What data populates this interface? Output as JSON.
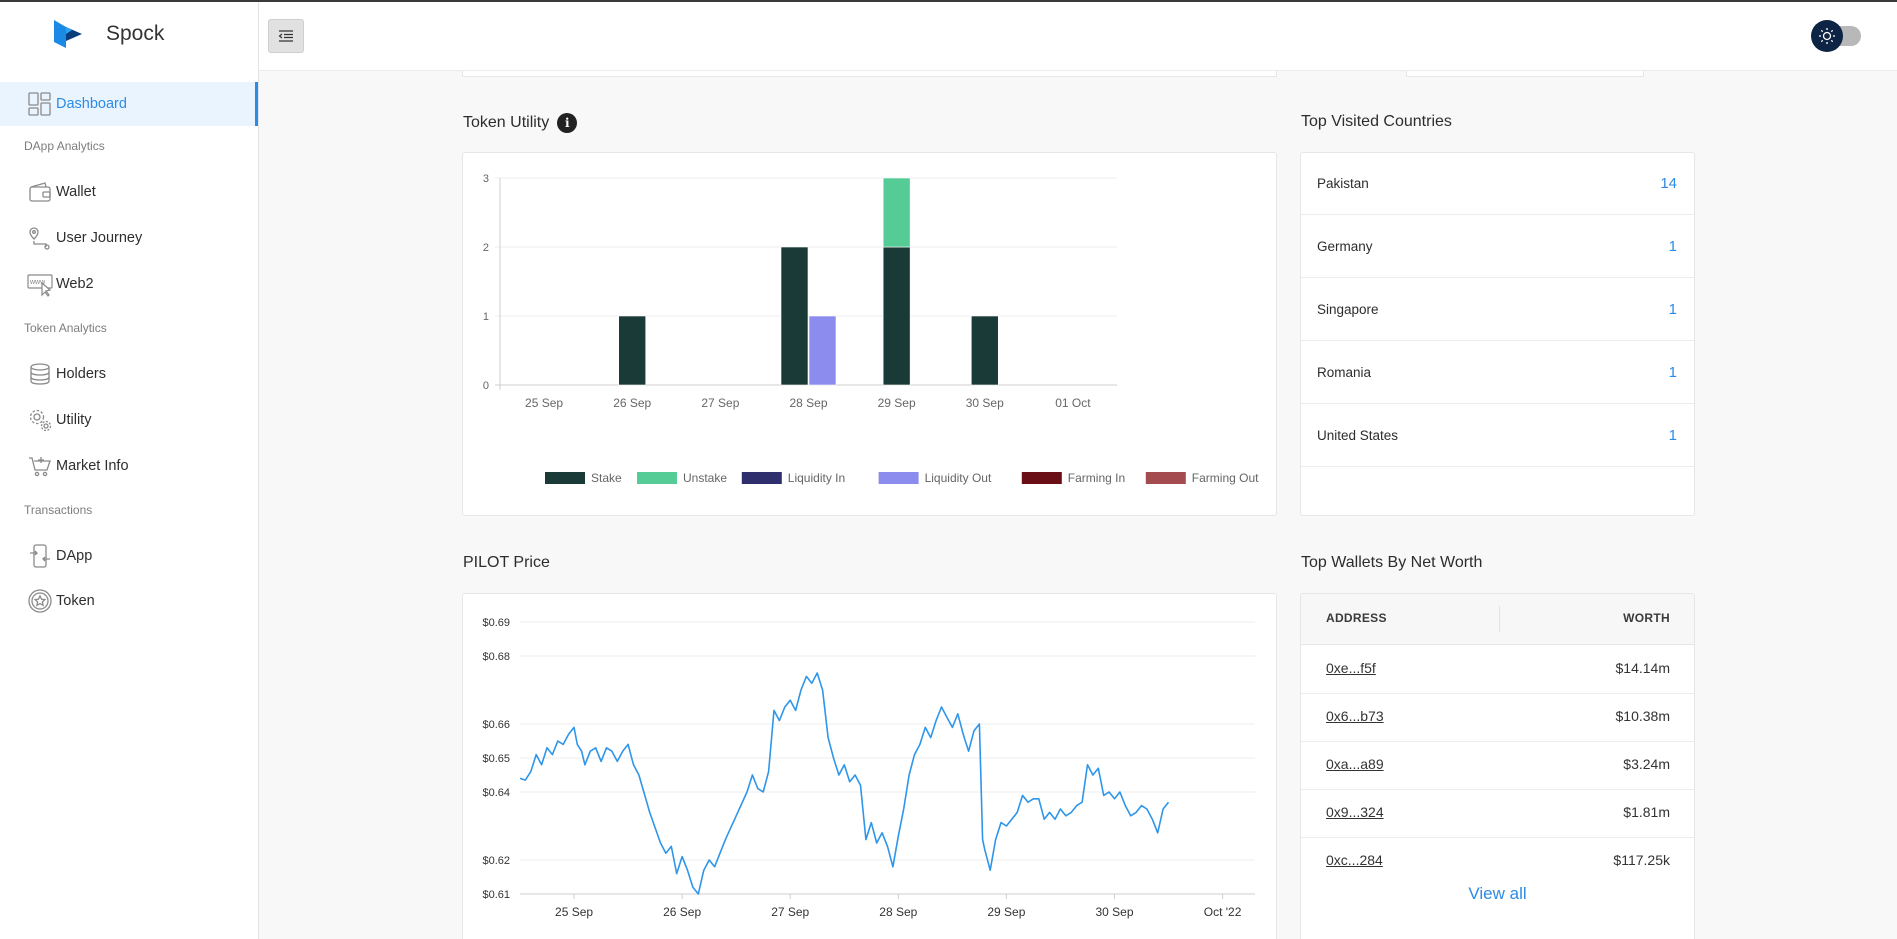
{
  "brand": {
    "name": "Spock"
  },
  "header": {
    "menu_icon": "indent-menu-icon",
    "theme_icon": "sun-icon"
  },
  "sidebar": {
    "dashboard": {
      "label": "Dashboard",
      "icon": "dashboard-icon"
    },
    "sections": [
      {
        "title": "DApp Analytics",
        "items": [
          {
            "label": "Wallet",
            "icon": "wallet-icon"
          },
          {
            "label": "User Journey",
            "icon": "route-pin-icon"
          },
          {
            "label": "Web2",
            "icon": "www-cursor-icon"
          }
        ]
      },
      {
        "title": "Token Analytics",
        "items": [
          {
            "label": "Holders",
            "icon": "coin-stack-icon"
          },
          {
            "label": "Utility",
            "icon": "gears-icon"
          },
          {
            "label": "Market Info",
            "icon": "cart-icon"
          }
        ]
      },
      {
        "title": "Transactions",
        "items": [
          {
            "label": "DApp",
            "icon": "phone-exchange-icon"
          },
          {
            "label": "Token",
            "icon": "token-star-icon"
          }
        ]
      }
    ]
  },
  "token_utility": {
    "title": "Token Utility",
    "info": "i"
  },
  "countries": {
    "title": "Top Visited Countries",
    "rows": [
      {
        "name": "Pakistan",
        "count": "14"
      },
      {
        "name": "Germany",
        "count": "1"
      },
      {
        "name": "Singapore",
        "count": "1"
      },
      {
        "name": "Romania",
        "count": "1"
      },
      {
        "name": "United States",
        "count": "1"
      }
    ]
  },
  "pilot_price": {
    "title": "PILOT Price"
  },
  "wallets": {
    "title": "Top Wallets By Net Worth",
    "col_address": "ADDRESS",
    "col_worth": "WORTH",
    "rows": [
      {
        "address": "0xe...f5f",
        "worth": "$14.14m"
      },
      {
        "address": "0x6...b73",
        "worth": "$10.38m"
      },
      {
        "address": "0xa...a89",
        "worth": "$3.24m"
      },
      {
        "address": "0x9...324",
        "worth": "$1.81m"
      },
      {
        "address": "0xc...284",
        "worth": "$117.25k"
      }
    ],
    "view_all": "View all"
  },
  "chart_data": [
    {
      "type": "bar",
      "stacked": true,
      "categories": [
        "25 Sep",
        "26 Sep",
        "27 Sep",
        "28 Sep",
        "29 Sep",
        "30 Sep",
        "01 Oct"
      ],
      "ylim": [
        0,
        3
      ],
      "yticks": [
        "0",
        "1",
        "2",
        "3"
      ],
      "grid": true,
      "legend_position": "bottom",
      "series": [
        {
          "name": "Stake",
          "color": "#1a3a38",
          "values": [
            0,
            1,
            0,
            2,
            2,
            1,
            0
          ],
          "stack": "a"
        },
        {
          "name": "Unstake",
          "color": "#55cc95",
          "values": [
            0,
            0,
            0,
            0,
            1,
            0,
            0
          ],
          "stack": "a"
        },
        {
          "name": "Liquidity In",
          "color": "#2f2f6e",
          "values": [
            0,
            0,
            0,
            0,
            0,
            0,
            0
          ],
          "stack": "b"
        },
        {
          "name": "Liquidity Out",
          "color": "#8b8cee",
          "values": [
            0,
            0,
            0,
            1,
            0,
            0,
            0
          ],
          "stack": "b"
        },
        {
          "name": "Farming In",
          "color": "#6b0f17",
          "values": [
            0,
            0,
            0,
            0,
            0,
            0,
            0
          ],
          "stack": "c"
        },
        {
          "name": "Farming Out",
          "color": "#a34b4e",
          "values": [
            0,
            0,
            0,
            0,
            0,
            0,
            0
          ],
          "stack": "c"
        }
      ]
    },
    {
      "type": "line",
      "color": "#2e96ea",
      "grid": true,
      "y_tick_labels": [
        "$0.61",
        "$0.62",
        "$0.64",
        "$0.65",
        "$0.66",
        "$0.68",
        "$0.69"
      ],
      "y_tick_values": [
        0.61,
        0.62,
        0.64,
        0.65,
        0.66,
        0.68,
        0.69
      ],
      "ylim": [
        0.61,
        0.69
      ],
      "x_tick_labels": [
        "25 Sep",
        "26 Sep",
        "27 Sep",
        "28 Sep",
        "29 Sep",
        "30 Sep",
        "Oct '22"
      ],
      "x_tick_days": [
        1,
        2,
        3,
        4,
        5,
        6,
        7
      ],
      "xlim_days": [
        0.5,
        7.3
      ],
      "points": [
        [
          0.5,
          0.644
        ],
        [
          0.55,
          0.6435
        ],
        [
          0.6,
          0.646
        ],
        [
          0.65,
          0.651
        ],
        [
          0.7,
          0.648
        ],
        [
          0.75,
          0.653
        ],
        [
          0.8,
          0.651
        ],
        [
          0.85,
          0.655
        ],
        [
          0.9,
          0.654
        ],
        [
          0.95,
          0.657
        ],
        [
          1.0,
          0.659
        ],
        [
          1.03,
          0.654
        ],
        [
          1.07,
          0.652
        ],
        [
          1.1,
          0.648
        ],
        [
          1.15,
          0.652
        ],
        [
          1.2,
          0.653
        ],
        [
          1.25,
          0.649
        ],
        [
          1.3,
          0.653
        ],
        [
          1.35,
          0.652
        ],
        [
          1.4,
          0.649
        ],
        [
          1.45,
          0.652
        ],
        [
          1.5,
          0.654
        ],
        [
          1.55,
          0.648
        ],
        [
          1.6,
          0.645
        ],
        [
          1.7,
          0.634
        ],
        [
          1.8,
          0.625
        ],
        [
          1.85,
          0.622
        ],
        [
          1.9,
          0.624
        ],
        [
          1.95,
          0.616
        ],
        [
          2.0,
          0.621
        ],
        [
          2.05,
          0.617
        ],
        [
          2.1,
          0.612
        ],
        [
          2.15,
          0.61
        ],
        [
          2.2,
          0.617
        ],
        [
          2.25,
          0.62
        ],
        [
          2.3,
          0.618
        ],
        [
          2.4,
          0.626
        ],
        [
          2.5,
          0.633
        ],
        [
          2.6,
          0.64
        ],
        [
          2.65,
          0.645
        ],
        [
          2.7,
          0.641
        ],
        [
          2.75,
          0.64
        ],
        [
          2.8,
          0.646
        ],
        [
          2.85,
          0.664
        ],
        [
          2.9,
          0.661
        ],
        [
          2.95,
          0.665
        ],
        [
          3.0,
          0.667
        ],
        [
          3.05,
          0.664
        ],
        [
          3.1,
          0.67
        ],
        [
          3.15,
          0.674
        ],
        [
          3.2,
          0.672
        ],
        [
          3.25,
          0.675
        ],
        [
          3.3,
          0.67
        ],
        [
          3.35,
          0.656
        ],
        [
          3.4,
          0.65
        ],
        [
          3.45,
          0.645
        ],
        [
          3.5,
          0.648
        ],
        [
          3.55,
          0.643
        ],
        [
          3.6,
          0.645
        ],
        [
          3.65,
          0.642
        ],
        [
          3.7,
          0.626
        ],
        [
          3.75,
          0.631
        ],
        [
          3.8,
          0.625
        ],
        [
          3.85,
          0.628
        ],
        [
          3.9,
          0.624
        ],
        [
          3.95,
          0.618
        ],
        [
          4.0,
          0.627
        ],
        [
          4.05,
          0.635
        ],
        [
          4.1,
          0.645
        ],
        [
          4.15,
          0.651
        ],
        [
          4.2,
          0.654
        ],
        [
          4.25,
          0.659
        ],
        [
          4.3,
          0.656
        ],
        [
          4.35,
          0.661
        ],
        [
          4.4,
          0.665
        ],
        [
          4.45,
          0.662
        ],
        [
          4.5,
          0.659
        ],
        [
          4.55,
          0.663
        ],
        [
          4.6,
          0.657
        ],
        [
          4.65,
          0.652
        ],
        [
          4.7,
          0.658
        ],
        [
          4.75,
          0.66
        ],
        [
          4.78,
          0.626
        ],
        [
          4.8,
          0.623
        ],
        [
          4.85,
          0.617
        ],
        [
          4.9,
          0.626
        ],
        [
          4.95,
          0.631
        ],
        [
          5.0,
          0.63
        ],
        [
          5.05,
          0.632
        ],
        [
          5.1,
          0.634
        ],
        [
          5.15,
          0.639
        ],
        [
          5.2,
          0.637
        ],
        [
          5.25,
          0.638
        ],
        [
          5.3,
          0.638
        ],
        [
          5.35,
          0.632
        ],
        [
          5.4,
          0.634
        ],
        [
          5.45,
          0.632
        ],
        [
          5.5,
          0.635
        ],
        [
          5.55,
          0.633
        ],
        [
          5.6,
          0.634
        ],
        [
          5.65,
          0.636
        ],
        [
          5.7,
          0.637
        ],
        [
          5.75,
          0.648
        ],
        [
          5.8,
          0.645
        ],
        [
          5.85,
          0.647
        ],
        [
          5.9,
          0.639
        ],
        [
          5.95,
          0.64
        ],
        [
          6.0,
          0.638
        ],
        [
          6.05,
          0.64
        ],
        [
          6.1,
          0.636
        ],
        [
          6.15,
          0.633
        ],
        [
          6.2,
          0.634
        ],
        [
          6.25,
          0.636
        ],
        [
          6.3,
          0.635
        ],
        [
          6.35,
          0.632
        ],
        [
          6.4,
          0.628
        ],
        [
          6.45,
          0.635
        ],
        [
          6.5,
          0.637
        ]
      ]
    }
  ],
  "colors": {
    "accent": "#2c8be6",
    "sidebar_active_bg": "#e9f4ff",
    "line": "#2e96ea"
  }
}
